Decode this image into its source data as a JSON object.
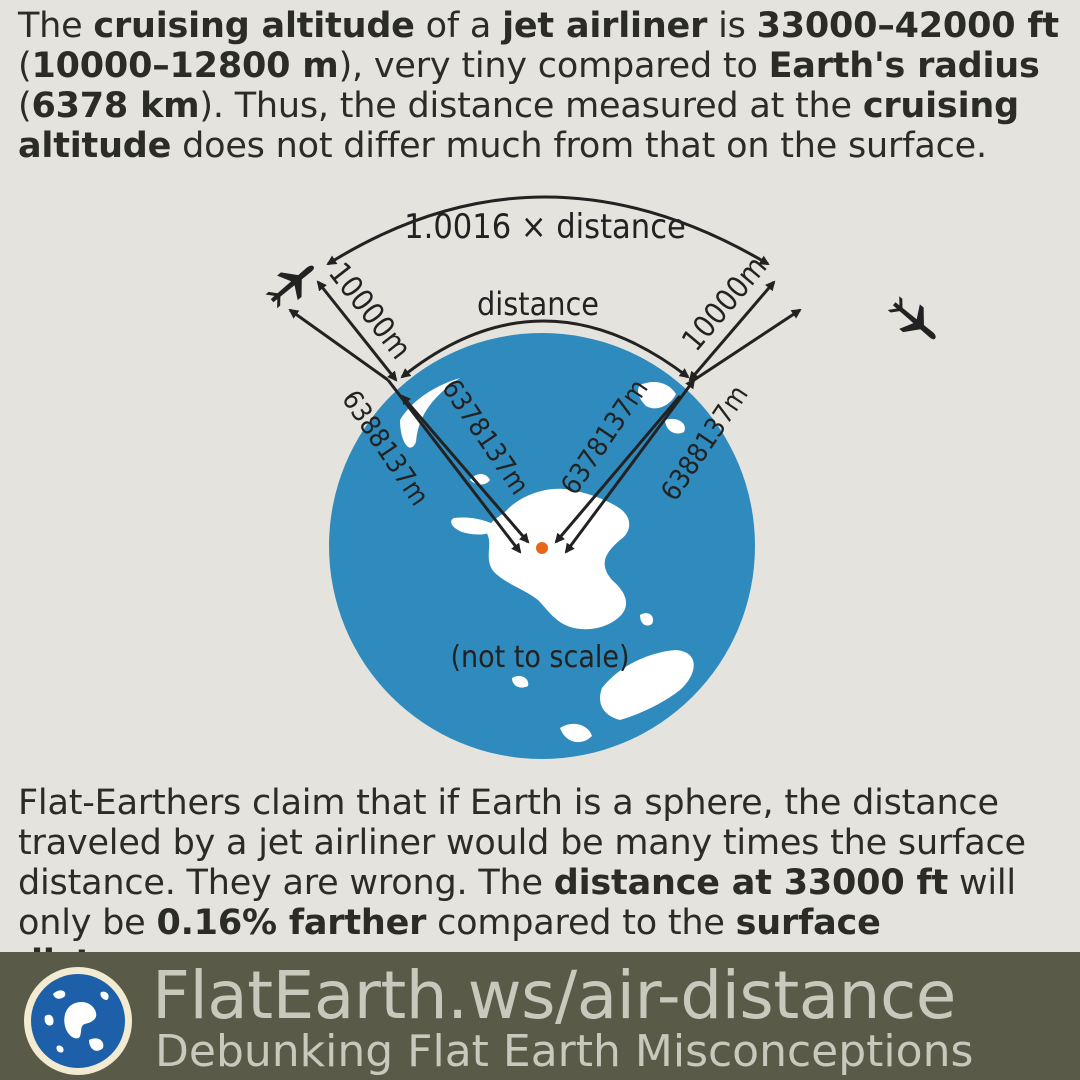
{
  "intro": {
    "t1": "The ",
    "b1": "cruising altitude",
    "t2": " of a ",
    "b2": "jet airliner",
    "t3": " is ",
    "b3": "33000–42000 ft",
    "t4": " (",
    "b4": "10000–12800 m",
    "t5": "), very tiny compared to ",
    "b5": "Earth's radius",
    "t6": " (",
    "b6": "6378 km",
    "t7": "). Thus, the distance measured at the ",
    "b7": "cruising altitude",
    "t8": " does not differ much from that on the surface."
  },
  "diagram": {
    "outer_arc_label": "1.0016 × distance",
    "inner_arc_label": "distance",
    "left_altitude": "10000m",
    "right_altitude": "10000m",
    "left_outer_radius": "6388137m",
    "left_inner_radius": "6378137m",
    "right_inner_radius": "6378137m",
    "right_outer_radius": "6388137m",
    "scale_note": "(not to scale)",
    "colors": {
      "ocean": "#2f8bbd",
      "land": "#ffffff",
      "center_dot": "#e8661c",
      "arrows": "#222222",
      "background": "#e4e3de"
    },
    "icons": [
      "airplane-icon",
      "airplane-icon",
      "globe-south-pole-view"
    ]
  },
  "conclusion": {
    "t1": "Flat-Earthers claim that if Earth is a sphere, the distance traveled by a jet airliner would be many times the surface distance. They are wrong. The ",
    "b1": "distance at 33000 ft",
    "t2": " will only be ",
    "b2": "0.16% farther",
    "t3": " compared to the ",
    "b3": "surface distance",
    "t4": "."
  },
  "footer": {
    "site": "FlatEarth.ws/air-distance",
    "tagline": "Debunking Flat Earth Misconceptions",
    "colors": {
      "band": "#5a5a48",
      "text": "#c9c8bd",
      "logo_ocean": "#1d5fa8",
      "logo_rim": "#f3ead2"
    }
  }
}
